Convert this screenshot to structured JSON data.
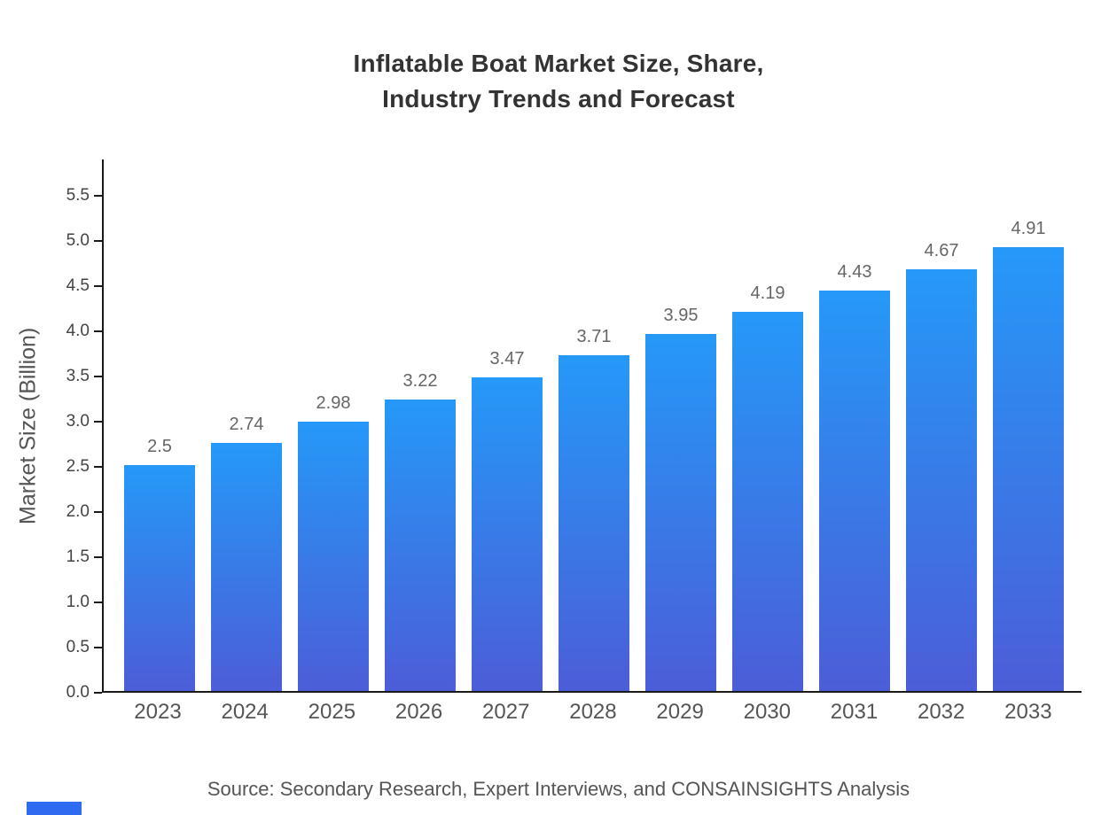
{
  "title": "Inflatable Boat Market Size, Share,\nIndustry Trends and Forecast",
  "source": "Source: Secondary Research, Expert Interviews, and CONSAINSIGHTS Analysis",
  "colors": {
    "bar_gradient_top": "#2599f8",
    "bar_gradient_bottom": "#4c5dd8",
    "axis": "#1a1a1a",
    "title_text": "#333333",
    "tick_text": "#444444",
    "category_text": "#555555",
    "value_label_text": "#666666",
    "accent": "#2f6bf0"
  },
  "chart_data": {
    "type": "bar",
    "title": "Inflatable Boat Market Size, Share, Industry Trends and Forecast",
    "categories": [
      "2023",
      "2024",
      "2025",
      "2026",
      "2027",
      "2028",
      "2029",
      "2030",
      "2031",
      "2032",
      "2033"
    ],
    "values": [
      2.5,
      2.74,
      2.98,
      3.22,
      3.47,
      3.71,
      3.95,
      4.19,
      4.43,
      4.67,
      4.91
    ],
    "value_labels": [
      "2.5",
      "2.74",
      "2.98",
      "3.22",
      "3.47",
      "3.71",
      "3.95",
      "4.19",
      "4.43",
      "4.67",
      "4.91"
    ],
    "xlabel": "",
    "ylabel": "Market Size (Billion)",
    "ylim": [
      0,
      5.9
    ],
    "yticks": [
      0.0,
      0.5,
      1.0,
      1.5,
      2.0,
      2.5,
      3.0,
      3.5,
      4.0,
      4.5,
      5.0,
      5.5
    ],
    "grid": false,
    "legend": false,
    "source": "Source: Secondary Research, Expert Interviews, and CONSAINSIGHTS Analysis"
  }
}
